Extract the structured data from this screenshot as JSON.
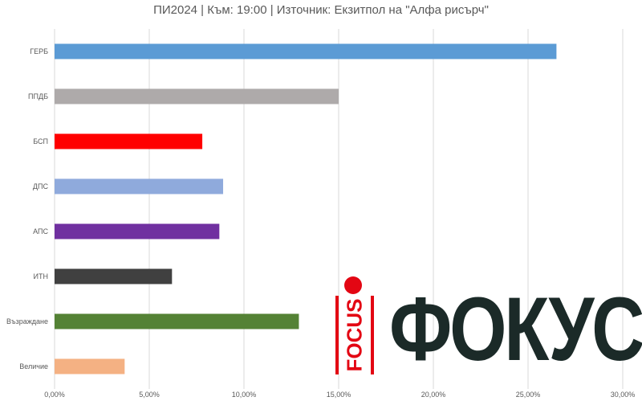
{
  "chart_data": {
    "type": "bar",
    "orientation": "horizontal",
    "title": "ПИ2024   | Към: 19:00   | Източник: Екзитпол на \"Алфа рисърч\"",
    "categories": [
      "ГЕРБ",
      "ППДБ",
      "БСП",
      "ДПС",
      "АПС",
      "ИТН",
      "Възраждане",
      "Величие"
    ],
    "values": [
      26.5,
      15.0,
      7.8,
      8.9,
      8.7,
      6.2,
      12.9,
      3.7
    ],
    "colors": [
      "#5b9bd5",
      "#aeaaaa",
      "#ff0000",
      "#8faadc",
      "#7030a0",
      "#404040",
      "#548235",
      "#f4b183"
    ],
    "xlim": [
      0,
      30
    ],
    "xticks": [
      "0,00%",
      "5,00%",
      "10,00%",
      "15,00%",
      "20,00%",
      "25,00%",
      "30,00%"
    ],
    "grid": true,
    "xlabel": "",
    "ylabel": ""
  },
  "logo": {
    "word": "ФОКУС",
    "side_text": "FOCUS",
    "colors": {
      "red": "#e30613",
      "dark": "#1b2a28"
    }
  }
}
